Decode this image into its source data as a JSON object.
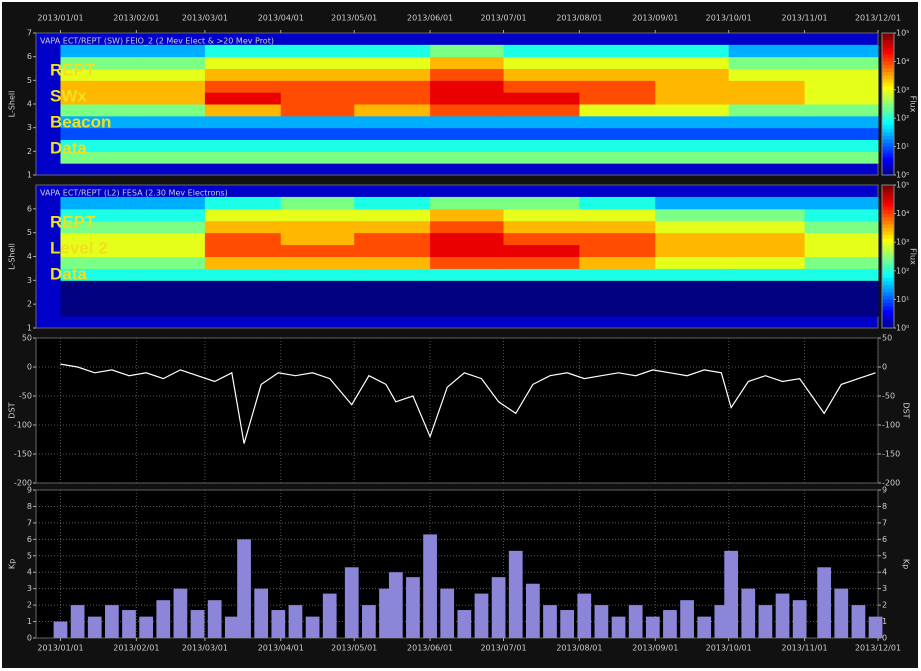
{
  "chart_data": [
    {
      "type": "heatmap",
      "title": "VAPA ECT/REPT (SW) FEIO_2 (2 Mev Elect & >20 Mev Prot)",
      "annotation": [
        "REPT",
        "SWx",
        "Beacon",
        "Data"
      ],
      "ylabel": "L-Shell",
      "colorbar_label": "Flux",
      "x": [
        "2013/01/01",
        "2013/02/01",
        "2013/03/01",
        "2013/04/01",
        "2013/05/01",
        "2013/06/01",
        "2013/07/01",
        "2013/08/01",
        "2013/09/01",
        "2013/10/01",
        "2013/11/01",
        "2013/12/01"
      ],
      "y": [
        1.5,
        2,
        2.5,
        3,
        3.5,
        4,
        4.5,
        5,
        5.5,
        6,
        6.5
      ],
      "z": [
        [
          300,
          300,
          300,
          300,
          300,
          300,
          300,
          300,
          300,
          300,
          300
        ],
        [
          100,
          100,
          100,
          100,
          100,
          100,
          100,
          100,
          100,
          100,
          100
        ],
        [
          10,
          10,
          10,
          10,
          10,
          10,
          10,
          10,
          10,
          10,
          10
        ],
        [
          30,
          30,
          30,
          30,
          30,
          30,
          30,
          30,
          30,
          30,
          30
        ],
        [
          300,
          300,
          3000,
          10000,
          3000,
          10000,
          10000,
          1000,
          1000,
          300,
          300
        ],
        [
          3000,
          3000,
          30000,
          10000,
          10000,
          30000,
          30000,
          10000,
          3000,
          3000,
          1000
        ],
        [
          3000,
          3000,
          10000,
          10000,
          10000,
          30000,
          10000,
          10000,
          3000,
          3000,
          1000
        ],
        [
          1000,
          1000,
          3000,
          3000,
          3000,
          10000,
          3000,
          3000,
          3000,
          1000,
          1000
        ],
        [
          300,
          300,
          1000,
          1000,
          1000,
          3000,
          1000,
          1000,
          1000,
          300,
          300
        ],
        [
          30,
          30,
          100,
          100,
          100,
          300,
          100,
          100,
          100,
          30,
          30
        ]
      ],
      "zlim": [
        1,
        100000
      ],
      "log_color": true,
      "zticks": [
        {
          "value": 1,
          "label": "10⁰"
        },
        {
          "value": 10,
          "label": "10¹"
        },
        {
          "value": 100,
          "label": "10²"
        },
        {
          "value": 1000,
          "label": "10³"
        },
        {
          "value": 10000,
          "label": "10⁴"
        },
        {
          "value": 100000,
          "label": "10⁵"
        }
      ],
      "xlim": [
        "2012/12/22",
        "2013/12/01"
      ],
      "ylim": [
        1,
        7
      ],
      "yticks": [
        1,
        2,
        3,
        4,
        5,
        6,
        7
      ],
      "xticks": [
        {
          "value": "2013/01/01",
          "label": "2013/01/01"
        },
        {
          "value": "2013/02/01",
          "label": "2013/02/01"
        },
        {
          "value": "2013/03/01",
          "label": "2013/03/01"
        },
        {
          "value": "2013/04/01",
          "label": "2013/04/01"
        },
        {
          "value": "2013/05/01",
          "label": "2013/05/01"
        },
        {
          "value": "2013/06/01",
          "label": "2013/06/01"
        },
        {
          "value": "2013/07/01",
          "label": "2013/07/01"
        },
        {
          "value": "2013/08/01",
          "label": "2013/08/01"
        },
        {
          "value": "2013/09/01",
          "label": "2013/09/01"
        },
        {
          "value": "2013/10/01",
          "label": "2013/10/01"
        },
        {
          "value": "2013/11/01",
          "label": "2013/11/01"
        },
        {
          "value": "2013/12/01",
          "label": "2013/12/01"
        }
      ]
    },
    {
      "type": "heatmap",
      "title": "VAPA ECT/REPT (L2) FESA (2.30 Mev Electrons)",
      "annotation": [
        "REPT",
        "Level 2",
        "Data"
      ],
      "ylabel": "L-Shell",
      "colorbar_label": "Flux",
      "x": [
        "2013/01/01",
        "2013/02/01",
        "2013/03/01",
        "2013/04/01",
        "2013/05/01",
        "2013/06/01",
        "2013/07/01",
        "2013/08/01",
        "2013/09/01",
        "2013/10/01",
        "2013/11/01",
        "2013/12/01"
      ],
      "y": [
        1.5,
        2,
        2.5,
        3,
        3.5,
        4,
        4.5,
        5,
        5.5,
        6,
        6.5
      ],
      "z": [
        [
          1,
          1,
          1,
          1,
          1,
          1,
          1,
          1,
          1,
          1,
          1
        ],
        [
          1,
          1,
          1,
          1,
          1,
          1,
          1,
          1,
          1,
          1,
          1
        ],
        [
          1,
          1,
          1,
          1,
          1,
          1,
          1,
          1,
          1,
          1,
          1
        ],
        [
          100,
          100,
          100,
          100,
          100,
          100,
          100,
          100,
          100,
          100,
          100
        ],
        [
          300,
          300,
          3000,
          3000,
          3000,
          10000,
          10000,
          3000,
          1000,
          1000,
          300
        ],
        [
          1000,
          1000,
          10000,
          10000,
          10000,
          30000,
          30000,
          10000,
          3000,
          3000,
          1000
        ],
        [
          1000,
          1000,
          10000,
          3000,
          10000,
          30000,
          10000,
          10000,
          3000,
          3000,
          1000
        ],
        [
          300,
          300,
          3000,
          3000,
          3000,
          10000,
          3000,
          3000,
          1000,
          1000,
          300
        ],
        [
          100,
          100,
          1000,
          1000,
          1000,
          3000,
          1000,
          1000,
          300,
          300,
          100
        ],
        [
          30,
          30,
          100,
          300,
          100,
          300,
          300,
          100,
          30,
          30,
          30
        ]
      ],
      "zlim": [
        1,
        100000
      ],
      "log_color": true,
      "zticks": [
        {
          "value": 1,
          "label": "10⁰"
        },
        {
          "value": 10,
          "label": "10¹"
        },
        {
          "value": 100,
          "label": "10²"
        },
        {
          "value": 1000,
          "label": "10³"
        },
        {
          "value": 10000,
          "label": "10⁴"
        },
        {
          "value": 100000,
          "label": "10⁵"
        }
      ],
      "xlim": [
        "2012/12/22",
        "2013/12/01"
      ],
      "ylim": [
        1,
        7
      ],
      "yticks": [
        1,
        2,
        3,
        4,
        5,
        6
      ]
    },
    {
      "type": "line",
      "ylabel": "DST",
      "color": "#ffffff",
      "grid": true,
      "x": [
        "2013/01/01",
        "2013/01/08",
        "2013/01/15",
        "2013/01/22",
        "2013/01/29",
        "2013/02/05",
        "2013/02/12",
        "2013/02/19",
        "2013/02/26",
        "2013/03/05",
        "2013/03/12",
        "2013/03/17",
        "2013/03/24",
        "2013/03/31",
        "2013/04/07",
        "2013/04/14",
        "2013/04/21",
        "2013/04/30",
        "2013/05/07",
        "2013/05/14",
        "2013/05/18",
        "2013/05/25",
        "2013/06/01",
        "2013/06/08",
        "2013/06/15",
        "2013/06/22",
        "2013/06/29",
        "2013/07/06",
        "2013/07/13",
        "2013/07/20",
        "2013/07/27",
        "2013/08/03",
        "2013/08/10",
        "2013/08/17",
        "2013/08/24",
        "2013/08/31",
        "2013/09/07",
        "2013/09/14",
        "2013/09/21",
        "2013/09/28",
        "2013/10/02",
        "2013/10/09",
        "2013/10/16",
        "2013/10/23",
        "2013/10/30",
        "2013/11/09",
        "2013/11/16",
        "2013/11/23",
        "2013/11/30"
      ],
      "values": [
        5,
        0,
        -10,
        -5,
        -15,
        -10,
        -20,
        -5,
        -15,
        -25,
        -10,
        -132,
        -30,
        -10,
        -15,
        -10,
        -20,
        -65,
        -15,
        -30,
        -60,
        -50,
        -120,
        -35,
        -10,
        -20,
        -60,
        -80,
        -30,
        -15,
        -10,
        -20,
        -15,
        -10,
        -15,
        -5,
        -10,
        -15,
        -5,
        -10,
        -70,
        -25,
        -15,
        -25,
        -20,
        -80,
        -30,
        -20,
        -10
      ],
      "xlim": [
        "2012/12/22",
        "2013/12/01"
      ],
      "ylim": [
        -200,
        50
      ],
      "yticks": [
        50,
        0,
        -50,
        -100,
        -150,
        -200
      ]
    },
    {
      "type": "bar",
      "ylabel": "Kp",
      "color": "#8c86d8",
      "grid": true,
      "x": [
        "2013/01/01",
        "2013/01/08",
        "2013/01/15",
        "2013/01/22",
        "2013/01/29",
        "2013/02/05",
        "2013/02/12",
        "2013/02/19",
        "2013/02/26",
        "2013/03/05",
        "2013/03/12",
        "2013/03/17",
        "2013/03/24",
        "2013/03/31",
        "2013/04/07",
        "2013/04/14",
        "2013/04/21",
        "2013/04/30",
        "2013/05/07",
        "2013/05/14",
        "2013/05/18",
        "2013/05/25",
        "2013/06/01",
        "2013/06/08",
        "2013/06/15",
        "2013/06/22",
        "2013/06/29",
        "2013/07/06",
        "2013/07/13",
        "2013/07/20",
        "2013/07/27",
        "2013/08/03",
        "2013/08/10",
        "2013/08/17",
        "2013/08/24",
        "2013/08/31",
        "2013/09/07",
        "2013/09/14",
        "2013/09/21",
        "2013/09/28",
        "2013/10/02",
        "2013/10/09",
        "2013/10/16",
        "2013/10/23",
        "2013/10/30",
        "2013/11/09",
        "2013/11/16",
        "2013/11/23",
        "2013/11/30"
      ],
      "values": [
        1,
        2,
        1.3,
        2,
        1.7,
        1.3,
        2.3,
        3,
        1.7,
        2.3,
        1.3,
        6,
        3,
        1.7,
        2,
        1.3,
        2.7,
        4.3,
        2,
        3,
        4,
        3.7,
        6.3,
        3,
        1.7,
        2.7,
        3.7,
        5.3,
        3.3,
        2,
        1.7,
        2.7,
        2,
        1.3,
        2,
        1.3,
        1.7,
        2.3,
        1.3,
        2,
        5.3,
        3,
        2,
        2.7,
        2.3,
        4.3,
        3,
        2,
        1.3
      ],
      "xlim": [
        "2012/12/22",
        "2013/12/01"
      ],
      "ylim": [
        0,
        9
      ],
      "yticks": [
        0,
        1,
        2,
        3,
        4,
        5,
        6,
        7,
        8,
        9
      ],
      "xticks": [
        {
          "value": "2013/01/01",
          "label": "2013/01/01"
        },
        {
          "value": "2013/02/01",
          "label": "2013/02/01"
        },
        {
          "value": "2013/03/01",
          "label": "2013/03/01"
        },
        {
          "value": "2013/04/01",
          "label": "2013/04/01"
        },
        {
          "value": "2013/05/01",
          "label": "2013/05/01"
        },
        {
          "value": "2013/06/01",
          "label": "2013/06/01"
        },
        {
          "value": "2013/07/01",
          "label": "2013/07/01"
        },
        {
          "value": "2013/08/01",
          "label": "2013/08/01"
        },
        {
          "value": "2013/09/01",
          "label": "2013/09/01"
        },
        {
          "value": "2013/10/01",
          "label": "2013/10/01"
        },
        {
          "value": "2013/11/01",
          "label": "2013/11/01"
        },
        {
          "value": "2013/12/01",
          "label": "2013/12/01"
        }
      ]
    }
  ]
}
